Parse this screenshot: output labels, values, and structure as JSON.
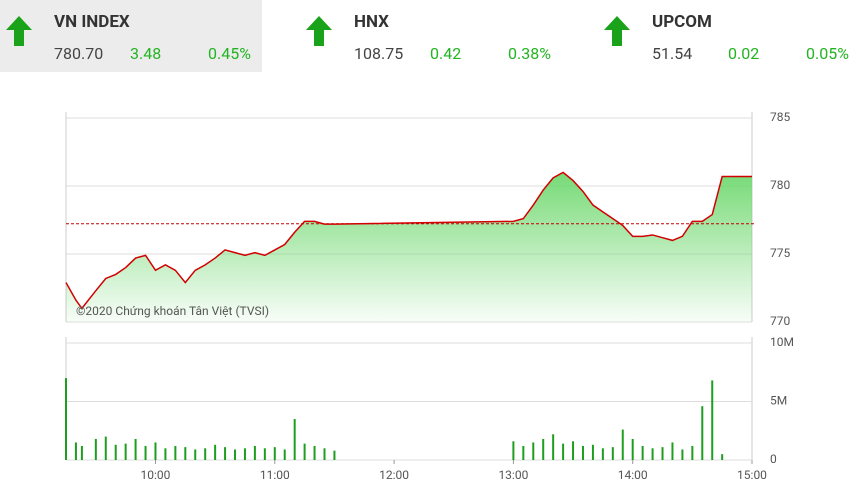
{
  "indices": [
    {
      "name": "VN INDEX",
      "value": "780.70",
      "change": "3.48",
      "percent": "0.45%"
    },
    {
      "name": "HNX",
      "value": "108.75",
      "change": "0.42",
      "percent": "0.38%"
    },
    {
      "name": "UPCOM",
      "value": "51.54",
      "change": "0.02",
      "percent": "0.05%"
    }
  ],
  "chart_data": [
    {
      "type": "line",
      "annotation": "©2020 Chứng khoán Tân Việt (TVSI)",
      "x": [
        9.25,
        9.3333,
        9.3833,
        9.5,
        9.5833,
        9.6667,
        9.75,
        9.8333,
        9.9167,
        10,
        10.0833,
        10.1667,
        10.25,
        10.3333,
        10.4167,
        10.5,
        10.5833,
        10.6667,
        10.75,
        10.8333,
        10.9167,
        11,
        11.0833,
        11.1667,
        11.25,
        11.3333,
        11.4167,
        11.5,
        13,
        13.0833,
        13.1667,
        13.25,
        13.3333,
        13.4167,
        13.5,
        13.5833,
        13.6667,
        13.75,
        13.8333,
        13.9167,
        14,
        14.0833,
        14.1667,
        14.25,
        14.3333,
        14.4167,
        14.5,
        14.5833,
        14.6667,
        14.75,
        15
      ],
      "series": [
        {
          "color": "#d10000",
          "values": [
            772.9,
            771.6,
            771.0,
            772.3,
            773.2,
            773.5,
            774.0,
            774.7,
            774.9,
            773.8,
            774.2,
            773.8,
            772.9,
            773.8,
            774.2,
            774.7,
            775.3,
            775.1,
            774.9,
            775.1,
            774.9,
            775.3,
            775.7,
            776.6,
            777.4,
            777.4,
            777.2,
            777.2,
            777.4,
            777.6,
            778.6,
            779.7,
            780.6,
            781.0,
            780.4,
            779.6,
            778.6,
            778.1,
            777.6,
            777.1,
            776.3,
            776.3,
            776.4,
            776.2,
            776.0,
            776.3,
            777.4,
            777.4,
            777.9,
            780.7,
            780.7
          ]
        }
      ],
      "reference": 777.22,
      "reference_color": "#c00000",
      "area_color": "#6fd86f",
      "xlim": [
        9.25,
        15
      ],
      "ylim": [
        770,
        785
      ],
      "yticks": [
        770,
        775,
        780,
        785
      ],
      "grid": true
    },
    {
      "type": "bar",
      "x": [
        9.25,
        9.3333,
        9.3833,
        9.5,
        9.5833,
        9.6667,
        9.75,
        9.8333,
        9.9167,
        10,
        10.0833,
        10.1667,
        10.25,
        10.3333,
        10.4167,
        10.5,
        10.5833,
        10.6667,
        10.75,
        10.8333,
        10.9167,
        11,
        11.0833,
        11.1667,
        11.25,
        11.3333,
        11.4167,
        11.5,
        13,
        13.0833,
        13.1667,
        13.25,
        13.3333,
        13.4167,
        13.5,
        13.5833,
        13.6667,
        13.75,
        13.8333,
        13.9167,
        14,
        14.0833,
        14.1667,
        14.25,
        14.3333,
        14.4167,
        14.5,
        14.5833,
        14.6667,
        14.75,
        15
      ],
      "series": [
        {
          "color": "#1e9e1e",
          "values": [
            7.0,
            1.5,
            1.2,
            1.8,
            2.0,
            1.3,
            1.4,
            1.8,
            1.2,
            1.5,
            1.0,
            1.2,
            1.1,
            0.9,
            1.0,
            1.3,
            1.1,
            0.9,
            1.0,
            1.2,
            1.0,
            1.1,
            0.9,
            3.5,
            1.4,
            1.2,
            1.0,
            0.8,
            1.6,
            1.2,
            1.5,
            1.8,
            2.2,
            1.4,
            1.6,
            1.2,
            1.3,
            1.0,
            1.1,
            2.6,
            1.8,
            1.2,
            1.0,
            1.1,
            1.5,
            0.9,
            1.2,
            4.6,
            6.8,
            0.5,
            null
          ]
        }
      ],
      "xlim": [
        9.25,
        15
      ],
      "ylim": [
        0,
        10
      ],
      "yticks": [
        0,
        {
          "value": 5,
          "label": "5M"
        },
        {
          "value": 10,
          "label": "10M"
        }
      ],
      "xticks": [
        {
          "value": 10,
          "label": "10:00"
        },
        {
          "value": 11,
          "label": "11:00"
        },
        {
          "value": 12,
          "label": "12:00"
        },
        {
          "value": 13,
          "label": "13:00"
        },
        {
          "value": 14,
          "label": "14:00"
        },
        {
          "value": 15,
          "label": "15:00"
        }
      ],
      "grid": true
    }
  ]
}
